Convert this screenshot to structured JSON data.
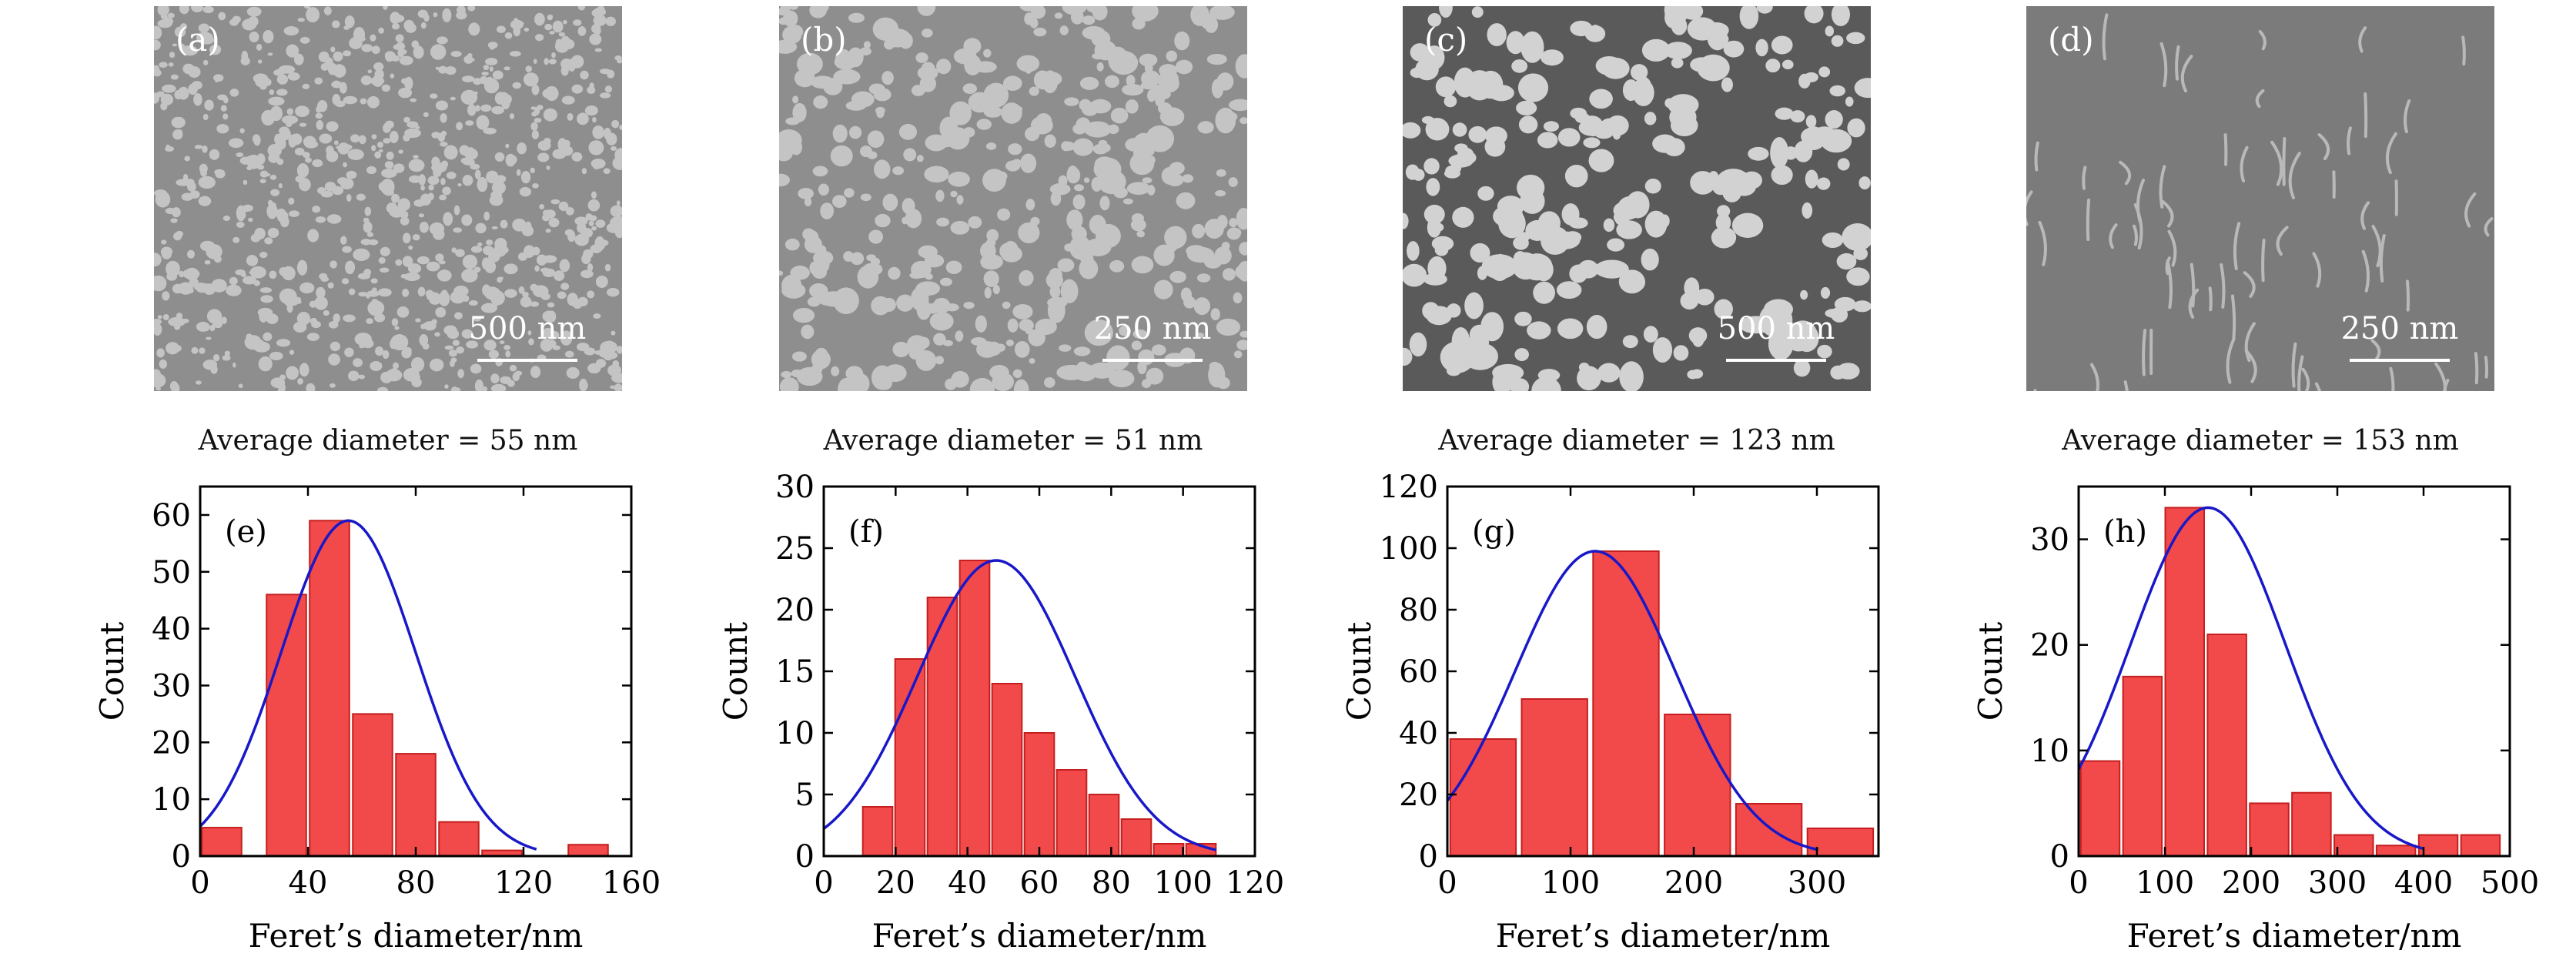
{
  "panels": [
    {
      "image": {
        "label": "(a)",
        "scale_bar": "500 nm",
        "tone": "light",
        "particles": "dense-small"
      },
      "average_text": "Average diameter = 55 nm",
      "chart_data": {
        "type": "bar",
        "panel_label": "(e)",
        "xlabel": "Feret’s diameter/nm",
        "ylabel": "Count",
        "xlim": [
          0,
          160
        ],
        "ylim": [
          0,
          65
        ],
        "xticks": [
          0,
          40,
          80,
          120,
          160
        ],
        "yticks": [
          0,
          10,
          20,
          30,
          40,
          50,
          60
        ],
        "bin_width": 16,
        "bins": [
          8,
          32,
          48,
          64,
          80,
          96,
          112,
          128,
          144
        ],
        "values": [
          5,
          46,
          59,
          25,
          18,
          6,
          1,
          0,
          2
        ],
        "fit": {
          "type": "gaussian",
          "mean": 55,
          "sigma": 25,
          "peak": 59
        }
      }
    },
    {
      "image": {
        "label": "(b)",
        "scale_bar": "250 nm",
        "tone": "light",
        "particles": "medium"
      },
      "average_text": "Average diameter = 51 nm",
      "chart_data": {
        "type": "bar",
        "panel_label": "(f)",
        "xlabel": "Feret’s diameter/nm",
        "ylabel": "Count",
        "xlim": [
          0,
          120
        ],
        "ylim": [
          0,
          30
        ],
        "xticks": [
          0,
          20,
          40,
          60,
          80,
          100,
          120
        ],
        "yticks": [
          0,
          5,
          10,
          15,
          20,
          25,
          30
        ],
        "bin_width": 9,
        "bins": [
          15,
          24,
          33,
          42,
          51,
          60,
          69,
          78,
          87,
          96,
          105,
          114
        ],
        "values": [
          4,
          16,
          21,
          24,
          14,
          10,
          7,
          5,
          3,
          1,
          1,
          0
        ],
        "fit": {
          "type": "gaussian",
          "mean": 48,
          "sigma": 22,
          "peak": 24
        }
      }
    },
    {
      "image": {
        "label": "(c)",
        "scale_bar": "500 nm",
        "tone": "dark",
        "particles": "large-irregular"
      },
      "average_text": "Average diameter = 123 nm",
      "chart_data": {
        "type": "bar",
        "panel_label": "(g)",
        "xlabel": "Feret’s diameter/nm",
        "ylabel": "Count",
        "xlim": [
          0,
          350
        ],
        "ylim": [
          0,
          120
        ],
        "xticks": [
          0,
          100,
          200,
          300
        ],
        "yticks": [
          0,
          20,
          40,
          60,
          80,
          100,
          120
        ],
        "bin_width": 58,
        "bins": [
          29,
          87,
          145,
          203,
          261,
          319
        ],
        "values": [
          38,
          51,
          99,
          46,
          17,
          9
        ],
        "fit": {
          "type": "gaussian",
          "mean": 120,
          "sigma": 65,
          "peak": 99
        }
      }
    },
    {
      "image": {
        "label": "(d)",
        "scale_bar": "250 nm",
        "tone": "mid",
        "particles": "filaments"
      },
      "average_text": "Average diameter = 153 nm",
      "chart_data": {
        "type": "bar",
        "panel_label": "(h)",
        "xlabel": "Feret’s diameter/nm",
        "ylabel": "Count",
        "xlim": [
          0,
          500
        ],
        "ylim": [
          0,
          35
        ],
        "xticks": [
          0,
          100,
          200,
          300,
          400,
          500
        ],
        "yticks": [
          0,
          10,
          20,
          30
        ],
        "bin_width": 49,
        "bins": [
          25,
          74,
          123,
          172,
          221,
          270,
          319,
          368,
          417,
          466
        ],
        "values": [
          9,
          17,
          33,
          21,
          5,
          6,
          2,
          1,
          2,
          2
        ],
        "fit": {
          "type": "gaussian",
          "mean": 150,
          "sigma": 90,
          "peak": 33
        }
      }
    }
  ]
}
